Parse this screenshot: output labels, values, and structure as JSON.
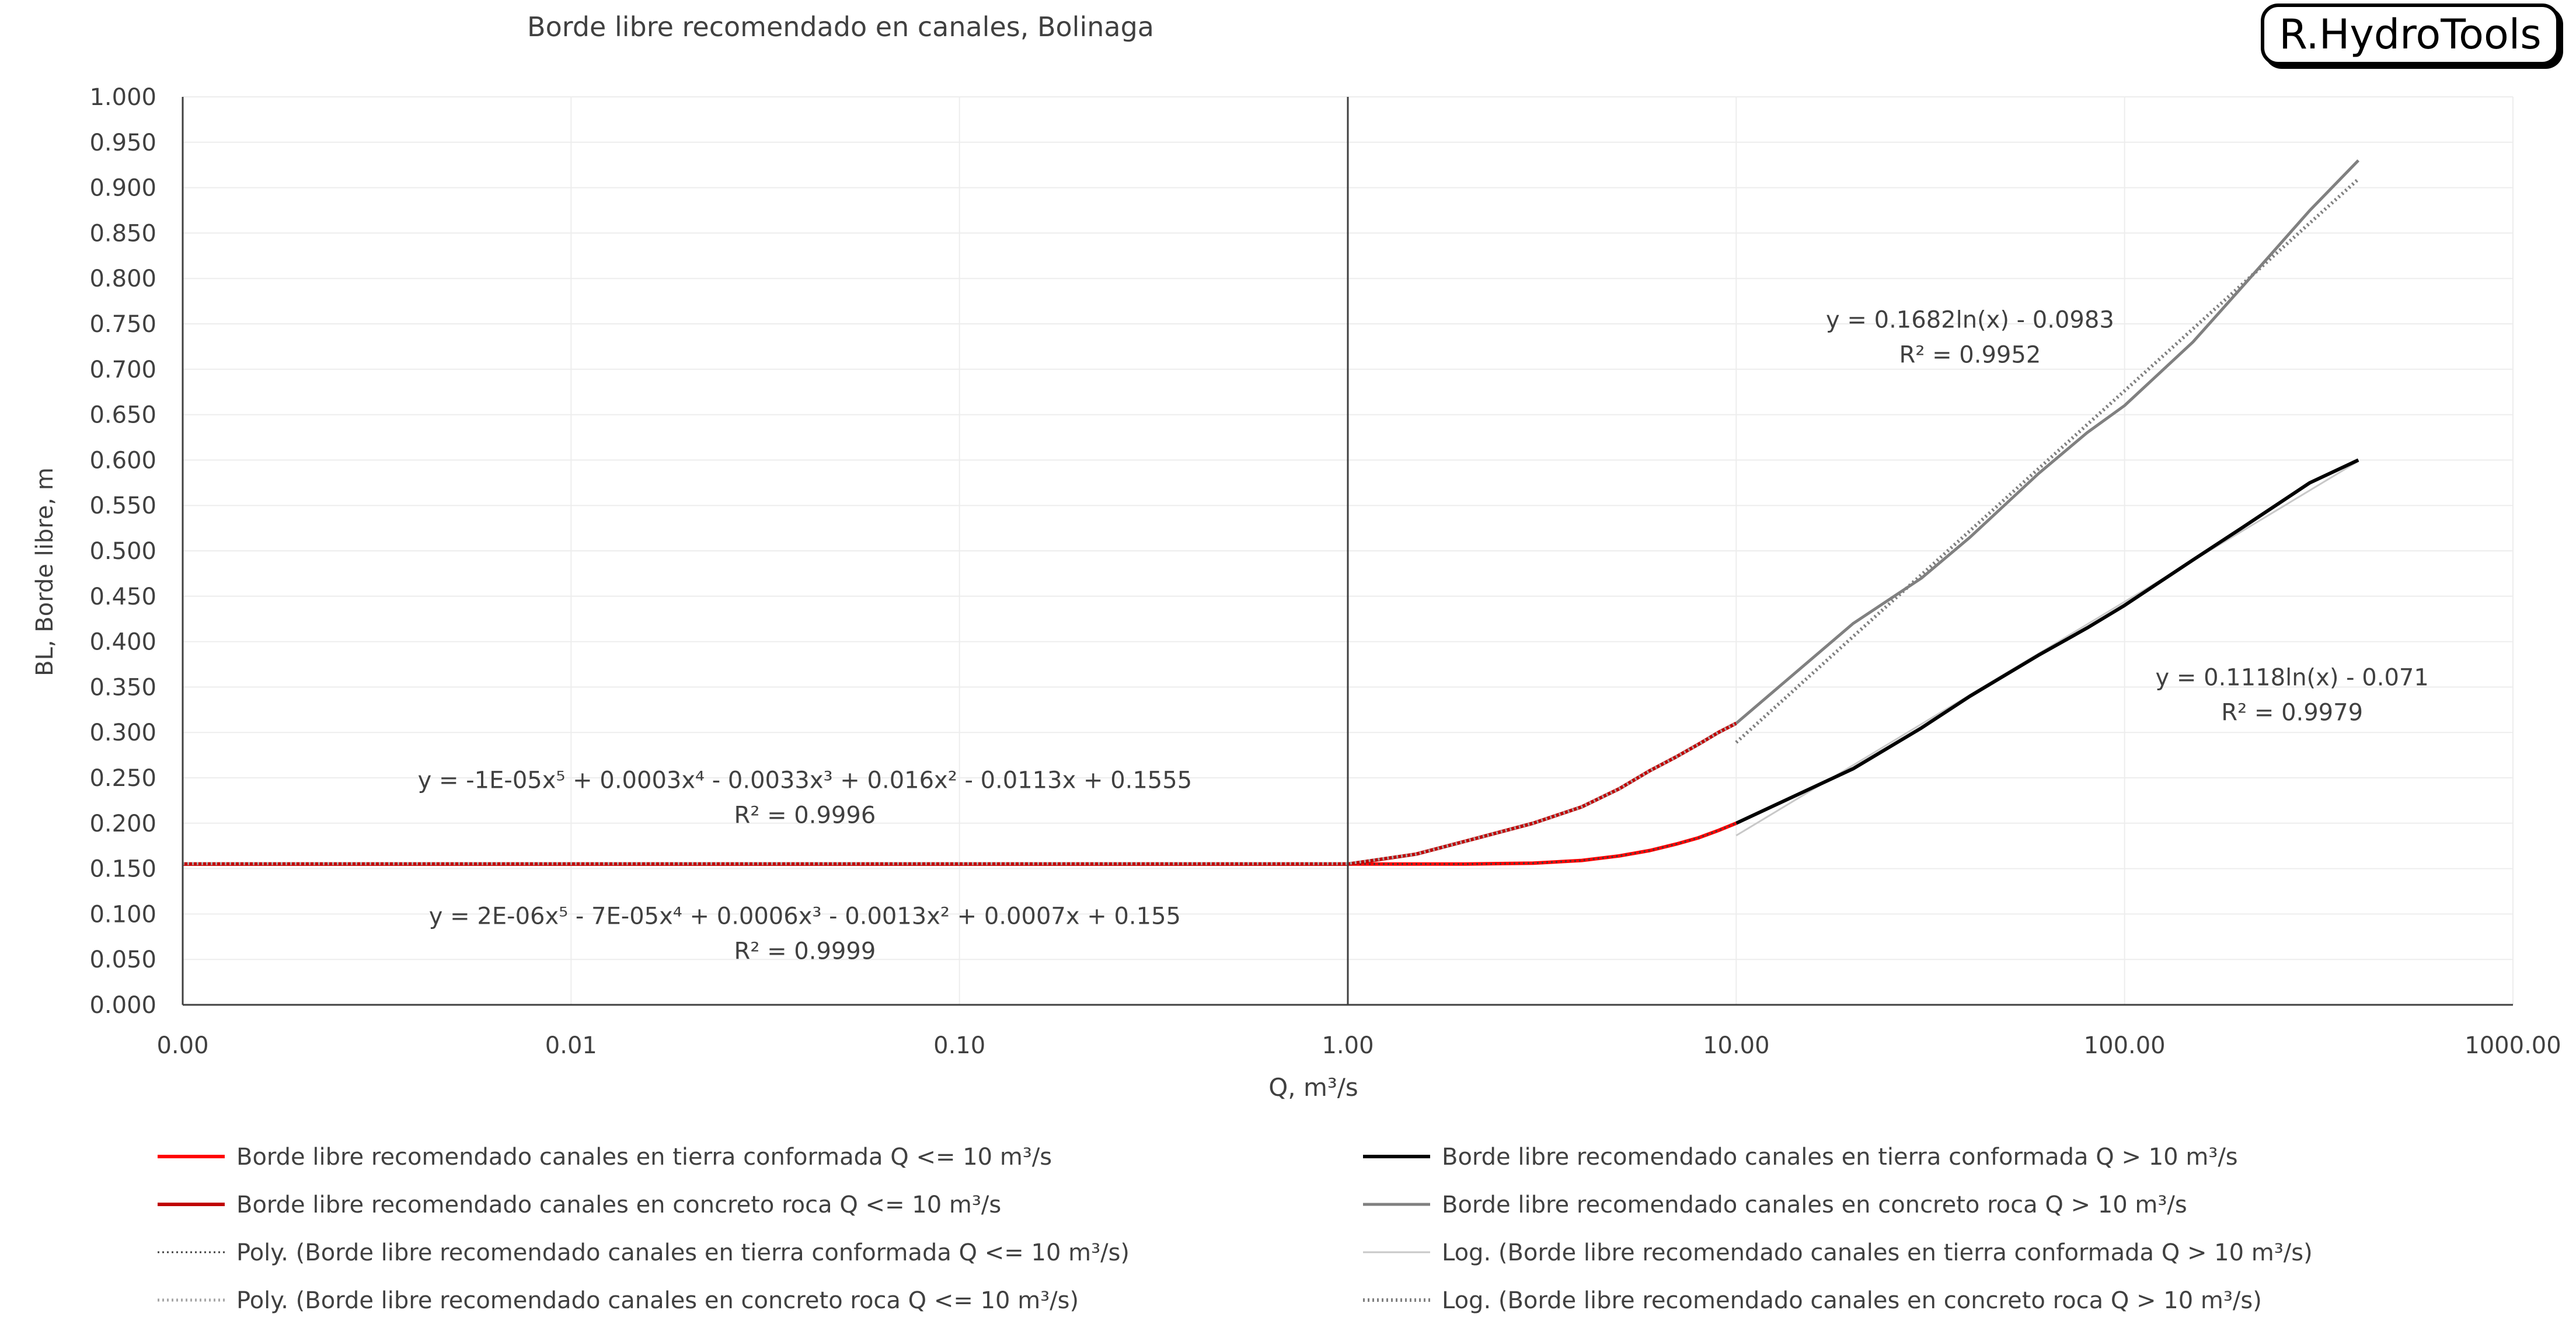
{
  "brand": {
    "label": "R.HydroTools"
  },
  "chart_data": {
    "type": "line",
    "title": "Borde libre recomendado en canales, Bolinaga",
    "xlabel": "Q, m³/s",
    "ylabel": "BL, Borde libre, m",
    "x_scale": "log",
    "xlim": [
      0.001,
      1000
    ],
    "ylim": [
      0,
      1
    ],
    "x_ticks": [
      0.001,
      0.01,
      0.1,
      1,
      10,
      100,
      1000
    ],
    "x_tick_labels": [
      "0.00",
      "0.01",
      "0.10",
      "1.00",
      "10.00",
      "100.00",
      "1000.00"
    ],
    "y_ticks": [
      0,
      0.05,
      0.1,
      0.15,
      0.2,
      0.25,
      0.3,
      0.35,
      0.4,
      0.45,
      0.5,
      0.55,
      0.6,
      0.65,
      0.7,
      0.75,
      0.8,
      0.85,
      0.9,
      0.95,
      1.0
    ],
    "y_tick_labels": [
      "0.000",
      "0.050",
      "0.100",
      "0.150",
      "0.200",
      "0.250",
      "0.300",
      "0.350",
      "0.400",
      "0.450",
      "0.500",
      "0.550",
      "0.600",
      "0.650",
      "0.700",
      "0.750",
      "0.800",
      "0.850",
      "0.900",
      "0.950",
      "1.000"
    ],
    "grid": true,
    "vertical_reference_line_x": 1,
    "legend_position": "bottom",
    "series": [
      {
        "name": "Borde libre recomendado canales en tierra conformada Q <= 10 m³/s",
        "color": "#ff0000",
        "style": "solid",
        "width": 6,
        "x": [
          0.001,
          1,
          1.5,
          2,
          3,
          4,
          5,
          6,
          7,
          8,
          9,
          10
        ],
        "y": [
          0.155,
          0.155,
          0.155,
          0.155,
          0.156,
          0.159,
          0.164,
          0.17,
          0.177,
          0.184,
          0.192,
          0.2
        ]
      },
      {
        "name": "Borde libre recomendado canales en concreto roca Q <= 10 m³/s",
        "color": "#c00000",
        "style": "solid",
        "width": 6,
        "x": [
          0.001,
          1,
          1.5,
          2,
          3,
          4,
          5,
          6,
          7,
          8,
          9,
          10
        ],
        "y": [
          0.155,
          0.155,
          0.166,
          0.18,
          0.2,
          0.218,
          0.238,
          0.258,
          0.273,
          0.287,
          0.3,
          0.31
        ]
      },
      {
        "name": "Poly. (Borde libre recomendado canales en tierra conformada Q <= 10 m³/s)",
        "color": "#404040",
        "style": "dotted",
        "width": 3,
        "x": [
          0.001,
          1,
          2,
          3,
          4,
          5,
          6,
          7,
          8,
          9,
          10
        ],
        "y": [
          0.155,
          0.155,
          0.155,
          0.156,
          0.159,
          0.164,
          0.17,
          0.177,
          0.184,
          0.192,
          0.2
        ]
      },
      {
        "name": "Poly. (Borde libre recomendado canales en concreto roca Q <= 10 m³/s)",
        "color": "#a6a6a6",
        "style": "dotted",
        "width": 5,
        "x": [
          0.001,
          1,
          1.5,
          2,
          3,
          4,
          5,
          6,
          7,
          8,
          9,
          10
        ],
        "y": [
          0.1555,
          0.1555,
          0.166,
          0.18,
          0.2,
          0.218,
          0.238,
          0.258,
          0.273,
          0.287,
          0.3,
          0.31
        ]
      },
      {
        "name": "Borde libre recomendado canales en tierra conformada Q > 10 m³/s",
        "color": "#000000",
        "style": "solid",
        "width": 6,
        "x": [
          10,
          20,
          30,
          40,
          60,
          80,
          100,
          150,
          200,
          300,
          400
        ],
        "y": [
          0.2,
          0.26,
          0.305,
          0.34,
          0.385,
          0.415,
          0.44,
          0.49,
          0.525,
          0.575,
          0.6
        ]
      },
      {
        "name": "Borde libre recomendado canales en concreto roca Q > 10 m³/s",
        "color": "#808080",
        "style": "solid",
        "width": 5,
        "x": [
          10,
          20,
          30,
          40,
          60,
          80,
          100,
          150,
          200,
          300,
          400
        ],
        "y": [
          0.31,
          0.42,
          0.47,
          0.515,
          0.585,
          0.63,
          0.66,
          0.73,
          0.79,
          0.875,
          0.93
        ]
      },
      {
        "name": "Log. (Borde libre recomendado canales en tierra conformada Q > 10 m³/s)",
        "color": "#c8c8c8",
        "style": "solid",
        "width": 3,
        "fit": {
          "kind": "log",
          "a": 0.1118,
          "b": -0.071
        },
        "x_range": [
          10,
          400
        ]
      },
      {
        "name": "Log. (Borde libre recomendado canales en concreto roca Q > 10 m³/s)",
        "color": "#808080",
        "style": "dotted",
        "width": 6,
        "fit": {
          "kind": "log",
          "a": 0.1682,
          "b": -0.0983
        },
        "x_range": [
          10,
          400
        ]
      }
    ],
    "annotations": [
      {
        "text": "y = 0.1682ln(x) - 0.0983",
        "r2": "R² = 0.9952",
        "x": 40,
        "y": 0.742
      },
      {
        "text": "y = 0.1118ln(x) - 0.071",
        "r2": "R² = 0.9979",
        "x": 270,
        "y": 0.348
      },
      {
        "text": "y = -1E-05x⁵ + 0.0003x⁴ - 0.0033x³ + 0.016x² - 0.0113x + 0.1555",
        "r2": "R² = 0.9996",
        "x": 0.04,
        "y": 0.235
      },
      {
        "text": "y = 2E-06x⁵ - 7E-05x⁴ + 0.0006x³ - 0.0013x² + 0.0007x + 0.155",
        "r2": "R² = 0.9999",
        "x": 0.04,
        "y": 0.085
      }
    ]
  }
}
